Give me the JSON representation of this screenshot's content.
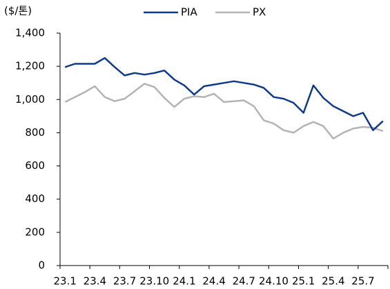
{
  "chart_data": {
    "type": "line",
    "y_label": "($/톤)",
    "categories": [
      "23.1",
      null,
      null,
      "23.4",
      null,
      null,
      "23.7",
      null,
      null,
      "23.10",
      null,
      null,
      "24.1",
      null,
      null,
      "24.4",
      null,
      null,
      "24.7",
      null,
      null,
      "24.10",
      null,
      null,
      "25.1",
      null,
      null,
      "25.4",
      null,
      null,
      "25.7",
      null,
      null
    ],
    "series": [
      {
        "name": "PIA",
        "color": "#0f3a8a",
        "values": [
          1195,
          1215,
          1215,
          1215,
          1250,
          1195,
          1145,
          1160,
          1150,
          1160,
          1175,
          1120,
          1085,
          1030,
          1080,
          1090,
          1100,
          1110,
          1100,
          1090,
          1070,
          1015,
          1005,
          980,
          920,
          1085,
          1010,
          960,
          930,
          900,
          920,
          815,
          870
        ]
      },
      {
        "name": "PX",
        "color": "#b4b4b4",
        "values": [
          985,
          1015,
          1045,
          1080,
          1015,
          990,
          1005,
          1050,
          1095,
          1075,
          1010,
          955,
          1005,
          1020,
          1015,
          1035,
          985,
          990,
          995,
          960,
          875,
          855,
          815,
          800,
          840,
          865,
          840,
          765,
          800,
          825,
          835,
          830,
          810
        ]
      }
    ],
    "ylim": [
      0,
      1400
    ],
    "yticks": [
      0,
      200,
      400,
      600,
      800,
      {
        "value": 1000,
        "label": "1,000"
      },
      {
        "value": 1200,
        "label": "1,200"
      },
      {
        "value": 1400,
        "label": "1,400"
      }
    ],
    "legend": "top"
  }
}
